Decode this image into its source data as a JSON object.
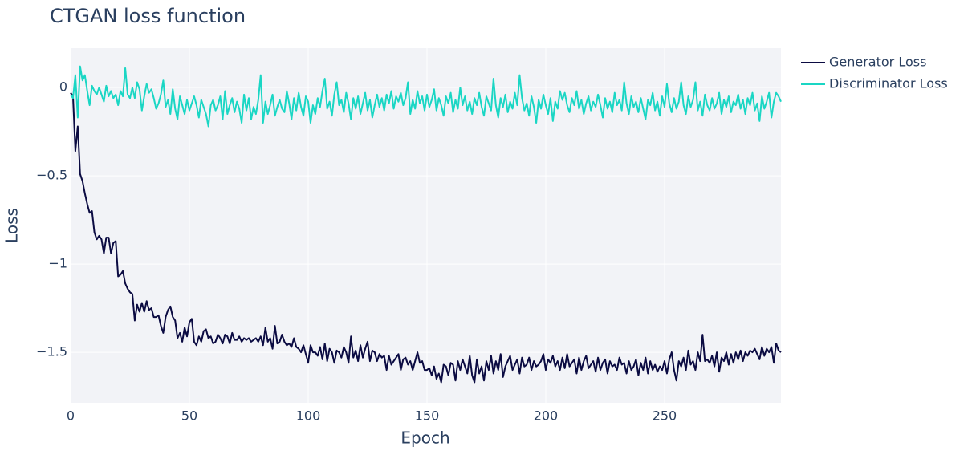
{
  "chart_data": {
    "type": "line",
    "title": "CTGAN loss function",
    "x_label": "Epoch",
    "y_label": "Loss",
    "x": [
      0,
      1,
      2,
      3,
      4,
      5,
      6,
      7,
      8,
      9,
      10,
      11,
      12,
      13,
      14,
      15,
      16,
      17,
      18,
      19,
      20,
      21,
      22,
      23,
      24,
      25,
      26,
      27,
      28,
      29,
      30,
      31,
      32,
      33,
      34,
      35,
      36,
      37,
      38,
      39,
      40,
      41,
      42,
      43,
      44,
      45,
      46,
      47,
      48,
      49,
      50,
      51,
      52,
      53,
      54,
      55,
      56,
      57,
      58,
      59,
      60,
      61,
      62,
      63,
      64,
      65,
      66,
      67,
      68,
      69,
      70,
      71,
      72,
      73,
      74,
      75,
      76,
      77,
      78,
      79,
      80,
      81,
      82,
      83,
      84,
      85,
      86,
      87,
      88,
      89,
      90,
      91,
      92,
      93,
      94,
      95,
      96,
      97,
      98,
      99,
      100,
      101,
      102,
      103,
      104,
      105,
      106,
      107,
      108,
      109,
      110,
      111,
      112,
      113,
      114,
      115,
      116,
      117,
      118,
      119,
      120,
      121,
      122,
      123,
      124,
      125,
      126,
      127,
      128,
      129,
      130,
      131,
      132,
      133,
      134,
      135,
      136,
      137,
      138,
      139,
      140,
      141,
      142,
      143,
      144,
      145,
      146,
      147,
      148,
      149,
      150,
      151,
      152,
      153,
      154,
      155,
      156,
      157,
      158,
      159,
      160,
      161,
      162,
      163,
      164,
      165,
      166,
      167,
      168,
      169,
      170,
      171,
      172,
      173,
      174,
      175,
      176,
      177,
      178,
      179,
      180,
      181,
      182,
      183,
      184,
      185,
      186,
      187,
      188,
      189,
      190,
      191,
      192,
      193,
      194,
      195,
      196,
      197,
      198,
      199,
      200,
      201,
      202,
      203,
      204,
      205,
      206,
      207,
      208,
      209,
      210,
      211,
      212,
      213,
      214,
      215,
      216,
      217,
      218,
      219,
      220,
      221,
      222,
      223,
      224,
      225,
      226,
      227,
      228,
      229,
      230,
      231,
      232,
      233,
      234,
      235,
      236,
      237,
      238,
      239,
      240,
      241,
      242,
      243,
      244,
      245,
      246,
      247,
      248,
      249,
      250,
      251,
      252,
      253,
      254,
      255,
      256,
      257,
      258,
      259,
      260,
      261,
      262,
      263,
      264,
      265,
      266,
      267,
      268,
      269,
      270,
      271,
      272,
      273,
      274,
      275,
      276,
      277,
      278,
      279,
      280,
      281,
      282,
      283,
      284,
      285,
      286,
      287,
      288,
      289,
      290,
      291,
      292,
      293,
      294,
      295,
      296,
      297,
      298,
      299
    ],
    "series": [
      {
        "name": "Generator Loss",
        "color": "#0b0b42",
        "values": [
          -0.03,
          -0.05,
          -0.36,
          -0.22,
          -0.49,
          -0.53,
          -0.6,
          -0.66,
          -0.71,
          -0.7,
          -0.82,
          -0.86,
          -0.84,
          -0.86,
          -0.94,
          -0.85,
          -0.85,
          -0.94,
          -0.88,
          -0.87,
          -1.07,
          -1.06,
          -1.04,
          -1.11,
          -1.14,
          -1.16,
          -1.17,
          -1.32,
          -1.23,
          -1.27,
          -1.22,
          -1.27,
          -1.21,
          -1.26,
          -1.25,
          -1.3,
          -1.3,
          -1.29,
          -1.35,
          -1.39,
          -1.3,
          -1.26,
          -1.24,
          -1.3,
          -1.32,
          -1.42,
          -1.39,
          -1.44,
          -1.36,
          -1.41,
          -1.33,
          -1.31,
          -1.44,
          -1.46,
          -1.41,
          -1.44,
          -1.38,
          -1.37,
          -1.42,
          -1.41,
          -1.45,
          -1.44,
          -1.4,
          -1.42,
          -1.45,
          -1.4,
          -1.41,
          -1.45,
          -1.39,
          -1.43,
          -1.43,
          -1.41,
          -1.44,
          -1.42,
          -1.43,
          -1.42,
          -1.44,
          -1.43,
          -1.42,
          -1.44,
          -1.41,
          -1.46,
          -1.36,
          -1.44,
          -1.42,
          -1.48,
          -1.35,
          -1.45,
          -1.44,
          -1.4,
          -1.44,
          -1.46,
          -1.45,
          -1.47,
          -1.42,
          -1.47,
          -1.48,
          -1.5,
          -1.46,
          -1.51,
          -1.56,
          -1.46,
          -1.5,
          -1.5,
          -1.52,
          -1.47,
          -1.54,
          -1.45,
          -1.55,
          -1.48,
          -1.5,
          -1.56,
          -1.49,
          -1.5,
          -1.53,
          -1.47,
          -1.5,
          -1.56,
          -1.41,
          -1.53,
          -1.49,
          -1.55,
          -1.46,
          -1.53,
          -1.48,
          -1.44,
          -1.55,
          -1.49,
          -1.5,
          -1.55,
          -1.51,
          -1.53,
          -1.52,
          -1.6,
          -1.52,
          -1.57,
          -1.55,
          -1.53,
          -1.51,
          -1.6,
          -1.54,
          -1.53,
          -1.57,
          -1.55,
          -1.6,
          -1.55,
          -1.5,
          -1.56,
          -1.55,
          -1.6,
          -1.6,
          -1.59,
          -1.63,
          -1.58,
          -1.65,
          -1.62,
          -1.67,
          -1.57,
          -1.58,
          -1.63,
          -1.56,
          -1.57,
          -1.66,
          -1.55,
          -1.6,
          -1.54,
          -1.58,
          -1.62,
          -1.52,
          -1.63,
          -1.67,
          -1.54,
          -1.62,
          -1.58,
          -1.66,
          -1.55,
          -1.6,
          -1.52,
          -1.62,
          -1.55,
          -1.6,
          -1.51,
          -1.64,
          -1.58,
          -1.55,
          -1.52,
          -1.6,
          -1.57,
          -1.54,
          -1.62,
          -1.53,
          -1.58,
          -1.57,
          -1.53,
          -1.6,
          -1.55,
          -1.58,
          -1.57,
          -1.55,
          -1.51,
          -1.6,
          -1.54,
          -1.56,
          -1.52,
          -1.58,
          -1.55,
          -1.6,
          -1.53,
          -1.59,
          -1.51,
          -1.58,
          -1.56,
          -1.54,
          -1.62,
          -1.53,
          -1.6,
          -1.55,
          -1.52,
          -1.59,
          -1.57,
          -1.55,
          -1.61,
          -1.53,
          -1.6,
          -1.56,
          -1.54,
          -1.62,
          -1.55,
          -1.58,
          -1.57,
          -1.6,
          -1.53,
          -1.57,
          -1.56,
          -1.62,
          -1.55,
          -1.6,
          -1.58,
          -1.54,
          -1.63,
          -1.56,
          -1.6,
          -1.53,
          -1.62,
          -1.55,
          -1.6,
          -1.57,
          -1.61,
          -1.58,
          -1.6,
          -1.55,
          -1.62,
          -1.54,
          -1.5,
          -1.6,
          -1.66,
          -1.55,
          -1.58,
          -1.53,
          -1.6,
          -1.49,
          -1.57,
          -1.55,
          -1.6,
          -1.5,
          -1.55,
          -1.4,
          -1.55,
          -1.54,
          -1.56,
          -1.52,
          -1.58,
          -1.5,
          -1.61,
          -1.53,
          -1.55,
          -1.5,
          -1.57,
          -1.51,
          -1.56,
          -1.5,
          -1.54,
          -1.49,
          -1.55,
          -1.5,
          -1.52,
          -1.49,
          -1.5,
          -1.48,
          -1.51,
          -1.54,
          -1.47,
          -1.52,
          -1.48,
          -1.5,
          -1.47,
          -1.56,
          -1.45,
          -1.49,
          -1.5
        ]
      },
      {
        "name": "Discriminator Loss",
        "color": "#1ad6c4",
        "values": [
          -0.04,
          -0.06,
          0.07,
          -0.17,
          0.12,
          0.04,
          0.07,
          -0.02,
          -0.1,
          0.01,
          -0.02,
          -0.04,
          0.0,
          -0.04,
          -0.08,
          0.01,
          -0.05,
          -0.02,
          -0.06,
          -0.04,
          -0.1,
          -0.02,
          -0.05,
          0.11,
          -0.04,
          -0.06,
          0.0,
          -0.06,
          0.03,
          -0.01,
          -0.13,
          -0.05,
          0.02,
          -0.03,
          -0.01,
          -0.06,
          -0.12,
          -0.09,
          -0.04,
          0.04,
          -0.11,
          -0.07,
          -0.15,
          -0.01,
          -0.12,
          -0.18,
          -0.05,
          -0.1,
          -0.15,
          -0.07,
          -0.13,
          -0.09,
          -0.05,
          -0.1,
          -0.17,
          -0.07,
          -0.11,
          -0.15,
          -0.22,
          -0.1,
          -0.07,
          -0.13,
          -0.1,
          -0.05,
          -0.18,
          -0.02,
          -0.15,
          -0.1,
          -0.06,
          -0.14,
          -0.08,
          -0.12,
          -0.2,
          -0.04,
          -0.13,
          -0.06,
          -0.18,
          -0.11,
          -0.15,
          -0.07,
          0.07,
          -0.2,
          -0.08,
          -0.15,
          -0.1,
          -0.04,
          -0.16,
          -0.11,
          -0.07,
          -0.12,
          -0.14,
          -0.02,
          -0.09,
          -0.18,
          -0.06,
          -0.13,
          -0.03,
          -0.11,
          -0.16,
          -0.05,
          -0.08,
          -0.2,
          -0.1,
          -0.15,
          -0.06,
          -0.11,
          -0.02,
          0.05,
          -0.12,
          -0.08,
          -0.16,
          -0.04,
          0.03,
          -0.1,
          -0.07,
          -0.14,
          -0.03,
          -0.09,
          -0.18,
          -0.06,
          -0.12,
          -0.05,
          -0.15,
          -0.09,
          -0.03,
          -0.13,
          -0.07,
          -0.17,
          -0.1,
          -0.04,
          -0.11,
          -0.06,
          -0.13,
          -0.04,
          -0.09,
          -0.02,
          -0.12,
          -0.05,
          -0.08,
          -0.03,
          -0.1,
          -0.06,
          0.03,
          -0.15,
          -0.07,
          -0.12,
          -0.02,
          -0.09,
          -0.05,
          -0.13,
          -0.04,
          -0.11,
          -0.07,
          -0.01,
          -0.13,
          -0.06,
          -0.1,
          -0.16,
          -0.05,
          -0.09,
          -0.03,
          -0.14,
          -0.07,
          -0.12,
          0.0,
          -0.1,
          -0.05,
          -0.13,
          -0.08,
          -0.15,
          -0.06,
          -0.1,
          -0.03,
          -0.11,
          -0.16,
          -0.05,
          -0.09,
          -0.13,
          0.05,
          -0.1,
          -0.17,
          -0.06,
          -0.11,
          -0.04,
          -0.14,
          -0.08,
          -0.12,
          -0.03,
          -0.1,
          0.07,
          -0.06,
          -0.13,
          -0.09,
          -0.16,
          -0.05,
          -0.11,
          -0.2,
          -0.07,
          -0.12,
          -0.04,
          -0.1,
          -0.15,
          -0.06,
          -0.19,
          -0.08,
          -0.12,
          -0.02,
          -0.07,
          -0.03,
          -0.1,
          -0.14,
          -0.06,
          -0.1,
          -0.02,
          -0.12,
          -0.07,
          -0.15,
          -0.09,
          -0.05,
          -0.13,
          -0.08,
          -0.11,
          -0.04,
          -0.1,
          -0.17,
          -0.06,
          -0.12,
          -0.08,
          -0.14,
          -0.03,
          -0.1,
          -0.07,
          -0.13,
          0.03,
          -0.09,
          -0.15,
          -0.05,
          -0.11,
          -0.08,
          -0.14,
          -0.06,
          -0.12,
          -0.18,
          -0.07,
          -0.1,
          -0.03,
          -0.13,
          -0.08,
          -0.16,
          -0.05,
          -0.11,
          0.02,
          -0.09,
          -0.14,
          -0.06,
          -0.12,
          -0.08,
          0.03,
          -0.1,
          -0.15,
          -0.05,
          -0.11,
          -0.07,
          0.03,
          -0.13,
          -0.08,
          -0.16,
          -0.04,
          -0.1,
          -0.13,
          -0.06,
          -0.12,
          -0.09,
          -0.03,
          -0.15,
          -0.07,
          -0.11,
          -0.05,
          -0.14,
          -0.08,
          -0.1,
          -0.04,
          -0.12,
          -0.07,
          -0.15,
          -0.06,
          -0.1,
          -0.03,
          -0.13,
          -0.09,
          -0.19,
          -0.05,
          -0.12,
          -0.08,
          -0.03,
          -0.17,
          -0.08,
          -0.03,
          -0.05,
          -0.08
        ]
      }
    ],
    "xlim": [
      0,
      299
    ],
    "xticks": [
      0,
      50,
      100,
      150,
      200,
      250
    ],
    "ylim": [
      -1.786,
      0.223
    ],
    "yticks": [
      {
        "value": -1.5,
        "label": "−1.5"
      },
      {
        "value": -1,
        "label": "−1"
      },
      {
        "value": -0.5,
        "label": "−0.5"
      },
      0
    ],
    "grid": true,
    "legend": "outside-right"
  }
}
